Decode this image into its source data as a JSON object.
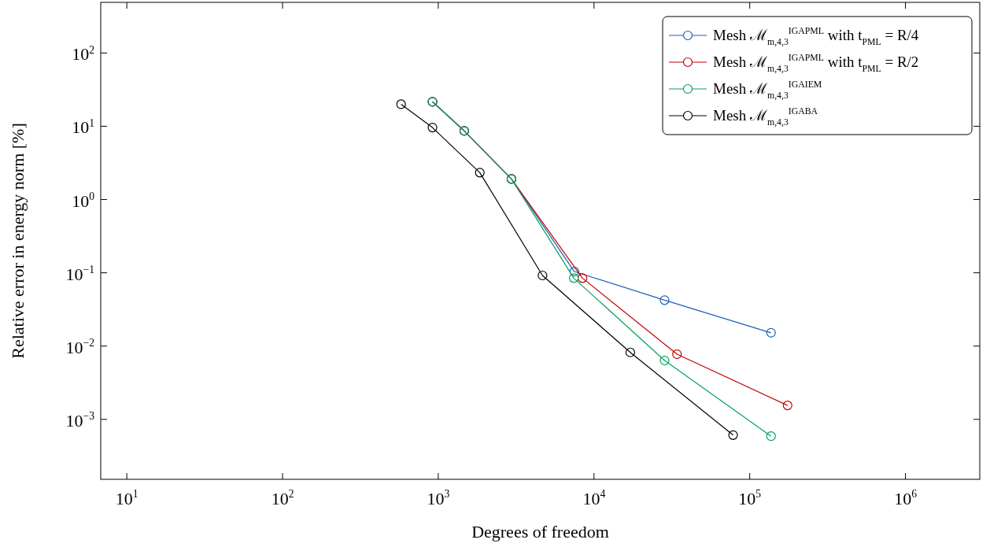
{
  "chart_data": {
    "type": "line",
    "xlabel": "Degrees of freedom",
    "ylabel": "Relative error in energy norm [%]",
    "log": "xy",
    "grid": false,
    "legend": "top right",
    "marker": "circle",
    "line_style": "solid",
    "xlim": [
      6.8,
      3000000
    ],
    "ylim": [
      0.000152,
      491
    ],
    "xticks": [
      {
        "value": 10,
        "label": "10$^{1}$"
      },
      {
        "value": 100,
        "label": "10$^{2}$"
      },
      {
        "value": 1000,
        "label": "10$^{3}$"
      },
      {
        "value": 10000,
        "label": "10$^{4}$"
      },
      {
        "value": 100000,
        "label": "10$^{5}$"
      },
      {
        "value": 1000000,
        "label": "10$^{6}$"
      }
    ],
    "yticks": [
      {
        "value": 0.001,
        "label": "10$^{−3}$"
      },
      {
        "value": 0.01,
        "label": "10$^{−2}$"
      },
      {
        "value": 0.1,
        "label": "10$^{−1}$"
      },
      {
        "value": 1,
        "label": "10$^{0}$"
      },
      {
        "value": 10,
        "label": "10$^{1}$"
      },
      {
        "value": 100,
        "label": "10$^{2}$"
      }
    ],
    "series": [
      {
        "name": "Mesh ℳ$_{m,4,3}$$^{IGAPML}$ with t$_{PML}$ = R/4",
        "color": "#1f5fb8",
        "x": [
          918,
          1468,
          2950,
          7480,
          28400,
          137000
        ],
        "values": [
          21.6,
          8.65,
          1.91,
          0.104,
          0.0424,
          0.0152
        ]
      },
      {
        "name": "Mesh ℳ$_{m,4,3}$$^{IGAPML}$ with t$_{PML}$ = R/2",
        "color": "#c00000",
        "x": [
          918,
          1468,
          2950,
          8430,
          34100,
          175000
        ],
        "values": [
          21.6,
          8.65,
          1.91,
          0.0847,
          0.00775,
          0.00155
        ]
      },
      {
        "name": "Mesh ℳ$_{m,4,3}$$^{IGAIEM}$",
        "color": "#00a060",
        "x": [
          918,
          1468,
          2950,
          7420,
          28400,
          137000
        ],
        "values": [
          21.6,
          8.65,
          1.91,
          0.0847,
          0.00636,
          0.00059
        ]
      },
      {
        "name": "Mesh ℳ$_{m,4,3}$$^{IGABA}$",
        "color": "#000000",
        "x": [
          577,
          918,
          1848,
          4670,
          17100,
          78200
        ],
        "values": [
          20.0,
          9.6,
          2.33,
          0.092,
          0.0082,
          0.00061
        ]
      }
    ]
  }
}
